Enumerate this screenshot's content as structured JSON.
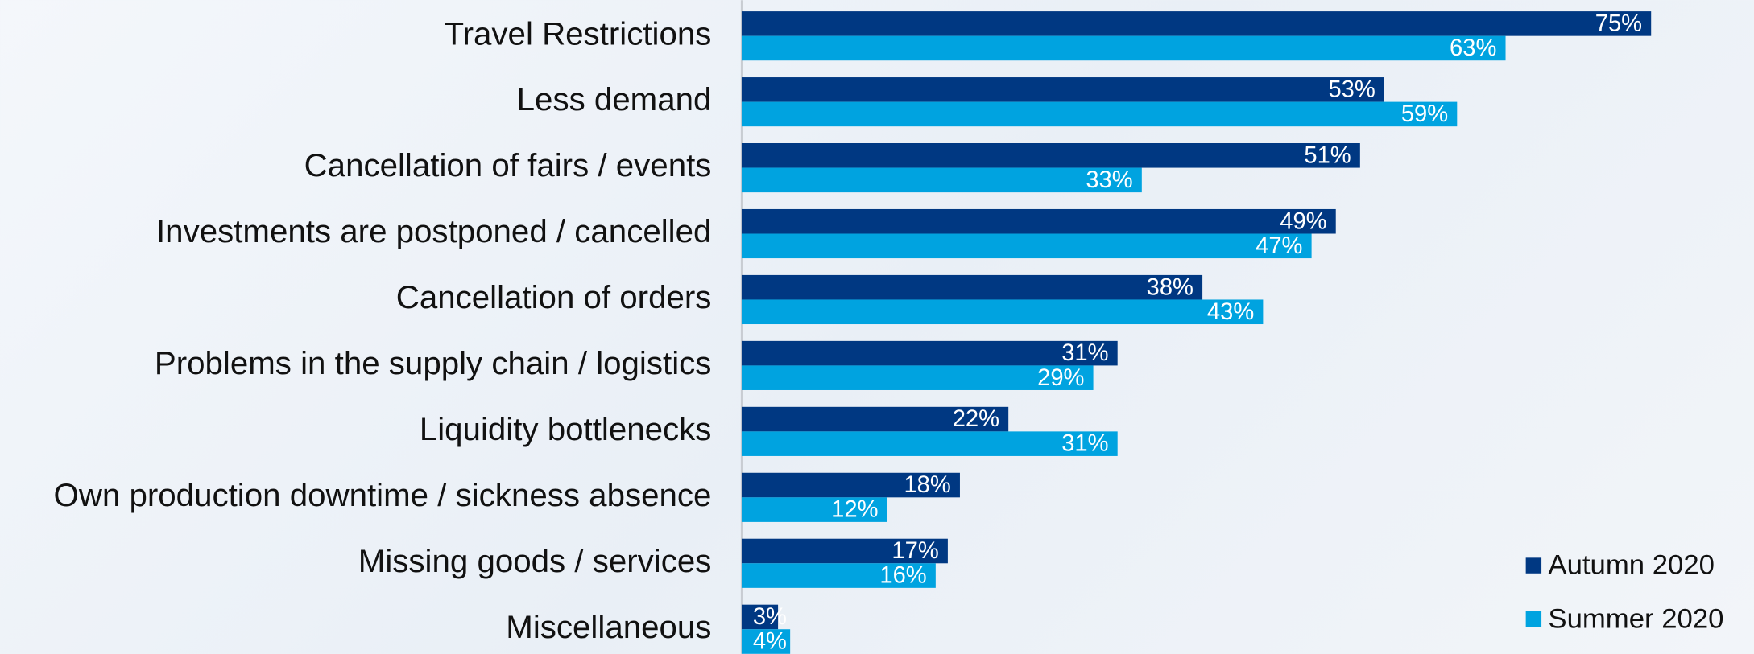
{
  "chart_data": {
    "type": "bar",
    "orientation": "horizontal",
    "categories": [
      "Travel Restrictions",
      "Less demand",
      "Cancellation of fairs / events",
      "Investments are postponed / cancelled",
      "Cancellation of orders",
      "Problems in the supply chain / logistics",
      "Liquidity bottlenecks",
      "Own production downtime / sickness absence",
      "Missing goods / services",
      "Miscellaneous"
    ],
    "series": [
      {
        "name": "Autumn 2020",
        "color": "#003882",
        "values": [
          75,
          53,
          51,
          49,
          38,
          31,
          22,
          18,
          17,
          3
        ],
        "value_labels": [
          "75%",
          "53%",
          "51%",
          "49%",
          "38%",
          "31%",
          "22%",
          "18%",
          "17%",
          "3%"
        ]
      },
      {
        "name": "Summer 2020",
        "color": "#00a3e0",
        "values": [
          63,
          59,
          33,
          47,
          43,
          29,
          31,
          12,
          16,
          4
        ],
        "value_labels": [
          "63%",
          "59%",
          "33%",
          "47%",
          "43%",
          "29%",
          "31%",
          "12%",
          "16%",
          "4%"
        ]
      }
    ],
    "legend": "bottom right"
  }
}
